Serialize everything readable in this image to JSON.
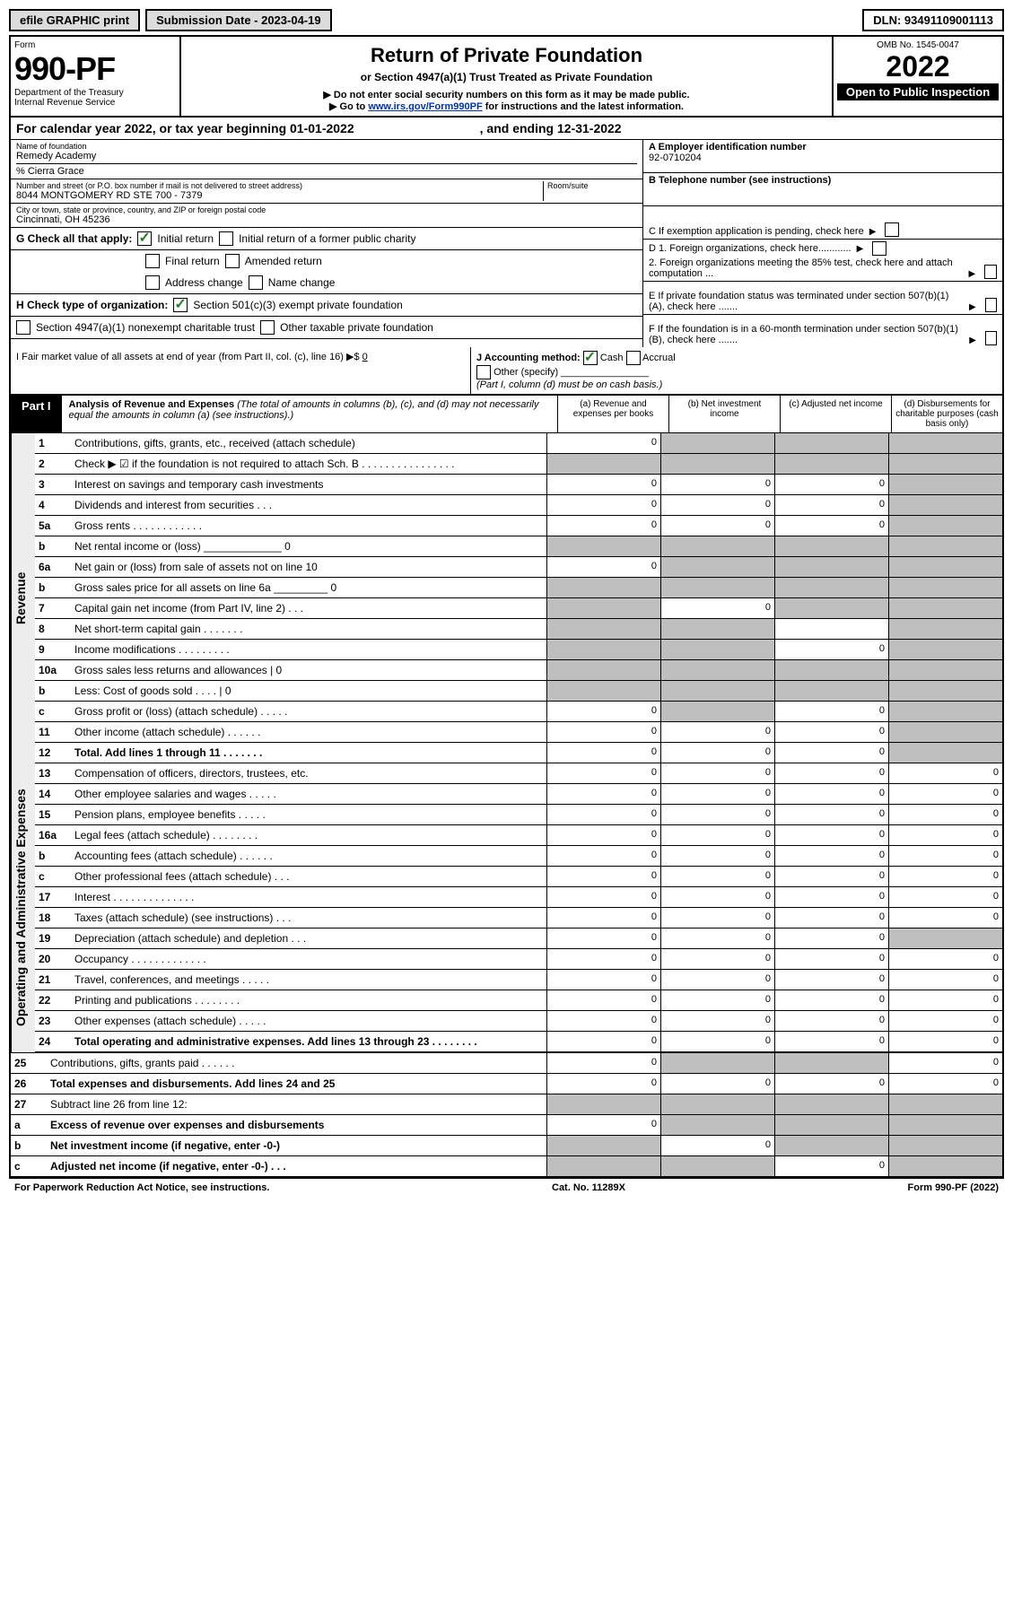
{
  "toolbar": {
    "efile_label": "efile GRAPHIC print",
    "submission_label": "Submission Date - 2023-04-19",
    "dln_label": "DLN: 93491109001113"
  },
  "header": {
    "form_word": "Form",
    "form_no": "990-PF",
    "dept": "Department of the Treasury",
    "irs": "Internal Revenue Service",
    "title": "Return of Private Foundation",
    "subtitle": "or Section 4947(a)(1) Trust Treated as Private Foundation",
    "note1": "▶ Do not enter social security numbers on this form as it may be made public.",
    "note2_pre": "▶ Go to ",
    "note2_link": "www.irs.gov/Form990PF",
    "note2_post": " for instructions and the latest information.",
    "omb": "OMB No. 1545-0047",
    "year": "2022",
    "open_public": "Open to Public Inspection"
  },
  "calendar": {
    "begin_label": "For calendar year 2022, or tax year beginning 01-01-2022",
    "end_label": ", and ending 12-31-2022"
  },
  "info": {
    "name_label": "Name of foundation",
    "name": "Remedy Academy",
    "care_of": "% Cierra Grace",
    "addr_label": "Number and street (or P.O. box number if mail is not delivered to street address)",
    "addr": "8044 MONTGOMERY RD STE 700 - 7379",
    "room_label": "Room/suite",
    "city_label": "City or town, state or province, country, and ZIP or foreign postal code",
    "city": "Cincinnati, OH 45236",
    "ein_label": "A Employer identification number",
    "ein": "92-0710204",
    "phone_label": "B Telephone number (see instructions)",
    "c_label": "C If exemption application is pending, check here",
    "d1_label": "D 1. Foreign organizations, check here............",
    "d2_label": "2. Foreign organizations meeting the 85% test, check here and attach computation ...",
    "e_label": "E If private foundation status was terminated under section 507(b)(1)(A), check here .......",
    "f_label": "F If the foundation is in a 60-month termination under section 507(b)(1)(B), check here ......."
  },
  "g": {
    "label": "G Check all that apply:",
    "opts": [
      "Initial return",
      "Initial return of a former public charity",
      "Final return",
      "Amended return",
      "Address change",
      "Name change"
    ]
  },
  "h": {
    "label": "H Check type of organization:",
    "opts": [
      "Section 501(c)(3) exempt private foundation",
      "Section 4947(a)(1) nonexempt charitable trust",
      "Other taxable private foundation"
    ]
  },
  "i": {
    "label": "I Fair market value of all assets at end of year (from Part II, col. (c), line 16) ▶$",
    "value": "0"
  },
  "j": {
    "label": "J Accounting method:",
    "opts": [
      "Cash",
      "Accrual",
      "Other (specify)"
    ],
    "note": "(Part I, column (d) must be on cash basis.)"
  },
  "part1": {
    "label": "Part I",
    "title": "Analysis of Revenue and Expenses",
    "desc": "(The total of amounts in columns (b), (c), and (d) may not necessarily equal the amounts in column (a) (see instructions).)",
    "cols": {
      "a": "(a) Revenue and expenses per books",
      "b": "(b) Net investment income",
      "c": "(c) Adjusted net income",
      "d": "(d) Disbursements for charitable purposes (cash basis only)"
    }
  },
  "side_labels": {
    "revenue": "Revenue",
    "expenses": "Operating and Administrative Expenses"
  },
  "rows": [
    {
      "no": "1",
      "desc": "Contributions, gifts, grants, etc., received (attach schedule)",
      "a": "0",
      "b": "",
      "c": "",
      "d": "",
      "b_s": true,
      "c_s": true,
      "d_s": true
    },
    {
      "no": "2",
      "desc": "Check ▶ ☑ if the foundation is not required to attach Sch. B . . . . . . . . . . . . . . . .",
      "a": "",
      "b": "",
      "c": "",
      "d": "",
      "a_s": true,
      "b_s": true,
      "c_s": true,
      "d_s": true
    },
    {
      "no": "3",
      "desc": "Interest on savings and temporary cash investments",
      "a": "0",
      "b": "0",
      "c": "0",
      "d": "",
      "d_s": true
    },
    {
      "no": "4",
      "desc": "Dividends and interest from securities . . .",
      "a": "0",
      "b": "0",
      "c": "0",
      "d": "",
      "d_s": true
    },
    {
      "no": "5a",
      "desc": "Gross rents . . . . . . . . . . . .",
      "a": "0",
      "b": "0",
      "c": "0",
      "d": "",
      "d_s": true
    },
    {
      "no": "b",
      "desc": "Net rental income or (loss) _____________ 0",
      "a": "",
      "b": "",
      "c": "",
      "d": "",
      "a_s": true,
      "b_s": true,
      "c_s": true,
      "d_s": true
    },
    {
      "no": "6a",
      "desc": "Net gain or (loss) from sale of assets not on line 10",
      "a": "0",
      "b": "",
      "c": "",
      "d": "",
      "b_s": true,
      "c_s": true,
      "d_s": true
    },
    {
      "no": "b",
      "desc": "Gross sales price for all assets on line 6a _________ 0",
      "a": "",
      "b": "",
      "c": "",
      "d": "",
      "a_s": true,
      "b_s": true,
      "c_s": true,
      "d_s": true
    },
    {
      "no": "7",
      "desc": "Capital gain net income (from Part IV, line 2) . . .",
      "a": "",
      "b": "0",
      "c": "",
      "d": "",
      "a_s": true,
      "c_s": true,
      "d_s": true
    },
    {
      "no": "8",
      "desc": "Net short-term capital gain . . . . . . .",
      "a": "",
      "b": "",
      "c": "",
      "d": "",
      "a_s": true,
      "b_s": true,
      "d_s": true
    },
    {
      "no": "9",
      "desc": "Income modifications . . . . . . . . .",
      "a": "",
      "b": "",
      "c": "0",
      "d": "",
      "a_s": true,
      "b_s": true,
      "d_s": true
    },
    {
      "no": "10a",
      "desc": "Gross sales less returns and allowances | 0",
      "a": "",
      "b": "",
      "c": "",
      "d": "",
      "a_s": true,
      "b_s": true,
      "c_s": true,
      "d_s": true
    },
    {
      "no": "b",
      "desc": "Less: Cost of goods sold . . . . | 0",
      "a": "",
      "b": "",
      "c": "",
      "d": "",
      "a_s": true,
      "b_s": true,
      "c_s": true,
      "d_s": true
    },
    {
      "no": "c",
      "desc": "Gross profit or (loss) (attach schedule) . . . . .",
      "a": "0",
      "b": "",
      "c": "0",
      "d": "",
      "b_s": true,
      "d_s": true
    },
    {
      "no": "11",
      "desc": "Other income (attach schedule) . . . . . .",
      "a": "0",
      "b": "0",
      "c": "0",
      "d": "",
      "d_s": true
    },
    {
      "no": "12",
      "desc": "Total. Add lines 1 through 11 . . . . . . .",
      "bold": true,
      "a": "0",
      "b": "0",
      "c": "0",
      "d": "",
      "d_s": true
    },
    {
      "no": "13",
      "desc": "Compensation of officers, directors, trustees, etc.",
      "a": "0",
      "b": "0",
      "c": "0",
      "d": "0"
    },
    {
      "no": "14",
      "desc": "Other employee salaries and wages . . . . .",
      "a": "0",
      "b": "0",
      "c": "0",
      "d": "0"
    },
    {
      "no": "15",
      "desc": "Pension plans, employee benefits . . . . .",
      "a": "0",
      "b": "0",
      "c": "0",
      "d": "0"
    },
    {
      "no": "16a",
      "desc": "Legal fees (attach schedule) . . . . . . . .",
      "a": "0",
      "b": "0",
      "c": "0",
      "d": "0"
    },
    {
      "no": "b",
      "desc": "Accounting fees (attach schedule) . . . . . .",
      "a": "0",
      "b": "0",
      "c": "0",
      "d": "0"
    },
    {
      "no": "c",
      "desc": "Other professional fees (attach schedule) . . .",
      "a": "0",
      "b": "0",
      "c": "0",
      "d": "0"
    },
    {
      "no": "17",
      "desc": "Interest . . . . . . . . . . . . . .",
      "a": "0",
      "b": "0",
      "c": "0",
      "d": "0"
    },
    {
      "no": "18",
      "desc": "Taxes (attach schedule) (see instructions) . . .",
      "a": "0",
      "b": "0",
      "c": "0",
      "d": "0"
    },
    {
      "no": "19",
      "desc": "Depreciation (attach schedule) and depletion . . .",
      "a": "0",
      "b": "0",
      "c": "0",
      "d": "",
      "d_s": true
    },
    {
      "no": "20",
      "desc": "Occupancy . . . . . . . . . . . . .",
      "a": "0",
      "b": "0",
      "c": "0",
      "d": "0"
    },
    {
      "no": "21",
      "desc": "Travel, conferences, and meetings . . . . .",
      "a": "0",
      "b": "0",
      "c": "0",
      "d": "0"
    },
    {
      "no": "22",
      "desc": "Printing and publications . . . . . . . .",
      "a": "0",
      "b": "0",
      "c": "0",
      "d": "0"
    },
    {
      "no": "23",
      "desc": "Other expenses (attach schedule) . . . . .",
      "a": "0",
      "b": "0",
      "c": "0",
      "d": "0"
    },
    {
      "no": "24",
      "desc": "Total operating and administrative expenses. Add lines 13 through 23 . . . . . . . .",
      "bold": true,
      "a": "0",
      "b": "0",
      "c": "0",
      "d": "0"
    },
    {
      "no": "25",
      "desc": "Contributions, gifts, grants paid . . . . . .",
      "a": "0",
      "b": "",
      "c": "",
      "d": "0",
      "b_s": true,
      "c_s": true
    },
    {
      "no": "26",
      "desc": "Total expenses and disbursements. Add lines 24 and 25",
      "bold": true,
      "a": "0",
      "b": "0",
      "c": "0",
      "d": "0"
    },
    {
      "no": "27",
      "desc": "Subtract line 26 from line 12:",
      "a": "",
      "b": "",
      "c": "",
      "d": "",
      "a_s": true,
      "b_s": true,
      "c_s": true,
      "d_s": true
    },
    {
      "no": "a",
      "desc": "Excess of revenue over expenses and disbursements",
      "bold": true,
      "a": "0",
      "b": "",
      "c": "",
      "d": "",
      "b_s": true,
      "c_s": true,
      "d_s": true
    },
    {
      "no": "b",
      "desc": "Net investment income (if negative, enter -0-)",
      "bold": true,
      "a": "",
      "b": "0",
      "c": "",
      "d": "",
      "a_s": true,
      "c_s": true,
      "d_s": true
    },
    {
      "no": "c",
      "desc": "Adjusted net income (if negative, enter -0-) . . .",
      "bold": true,
      "a": "",
      "b": "",
      "c": "0",
      "d": "",
      "a_s": true,
      "b_s": true,
      "d_s": true
    }
  ],
  "footer": {
    "left": "For Paperwork Reduction Act Notice, see instructions.",
    "center": "Cat. No. 11289X",
    "right": "Form 990-PF (2022)"
  },
  "colors": {
    "shaded": "#bfbfbf",
    "link": "#0033aa",
    "check_green": "#2a7a2a"
  }
}
